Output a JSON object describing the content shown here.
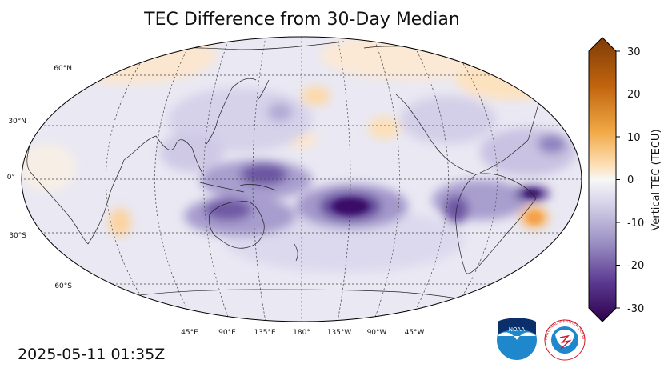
{
  "title": "TEC Difference from 30-Day Median",
  "timestamp": "2025-05-11 01:35Z",
  "colorbar": {
    "label": "Vertical TEC (TECU)",
    "ticks": [
      "30",
      "20",
      "10",
      "0",
      "-10",
      "-20",
      "-30"
    ],
    "range": [
      -30,
      30
    ],
    "colors": {
      "min": "#2d004b",
      "mid": "#f7f7f7",
      "max": "#7f3b08"
    }
  },
  "latitude_labels": [
    "60°N",
    "30°N",
    "0°",
    "30°S",
    "60°S"
  ],
  "longitude_labels": [
    "45°E",
    "90°E",
    "135°E",
    "180°",
    "135°W",
    "90°W",
    "45°W"
  ],
  "logos": [
    {
      "name": "noaa-logo",
      "text": "NOAA"
    },
    {
      "name": "nws-logo",
      "text": "NATIONAL WEATHER SERVICE"
    }
  ]
}
